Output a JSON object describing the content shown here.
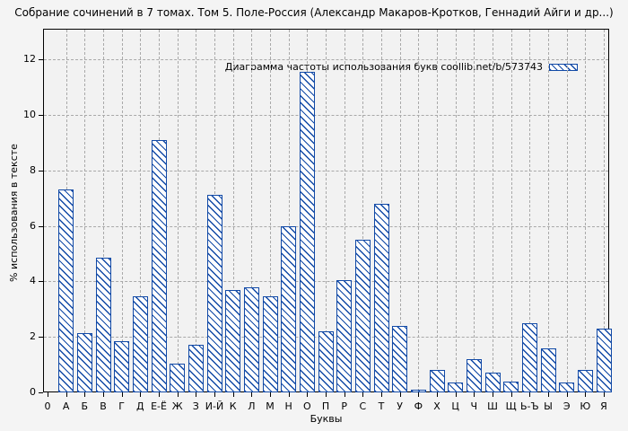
{
  "chart_data": {
    "type": "bar",
    "title": "Собрание сочинений в 7 томах. Том 5. Поле-Россия (Александр Макаров-Кротков, Геннадий Айги и др...)",
    "legend": "Диаграмма частоты использования букв coollib.net/b/573743",
    "legend_position": "top-right-inside",
    "xlabel": "Буквы",
    "ylabel": "% использования в тексте",
    "x_origin_label": "0",
    "categories": [
      "А",
      "Б",
      "В",
      "Г",
      "Д",
      "Е-Ё",
      "Ж",
      "З",
      "И-Й",
      "К",
      "Л",
      "М",
      "Н",
      "О",
      "П",
      "Р",
      "С",
      "Т",
      "У",
      "Ф",
      "Х",
      "Ц",
      "Ч",
      "Ш",
      "Щ",
      "Ь-Ъ",
      "Ы",
      "Э",
      "Ю",
      "Я"
    ],
    "values": [
      7.3,
      2.15,
      4.85,
      1.85,
      3.45,
      9.1,
      1.05,
      1.7,
      7.1,
      3.7,
      3.8,
      3.45,
      6.0,
      11.55,
      2.2,
      4.05,
      5.5,
      6.8,
      2.4,
      0.1,
      0.8,
      0.35,
      1.2,
      0.7,
      0.4,
      2.5,
      1.6,
      0.35,
      0.8,
      2.3
    ],
    "yticks": [
      0,
      2,
      4,
      6,
      8,
      10,
      12
    ],
    "ylim": [
      0,
      13.1
    ],
    "grid": true,
    "bar_color": "#1149a6",
    "background_color": "#f4f4f4"
  }
}
